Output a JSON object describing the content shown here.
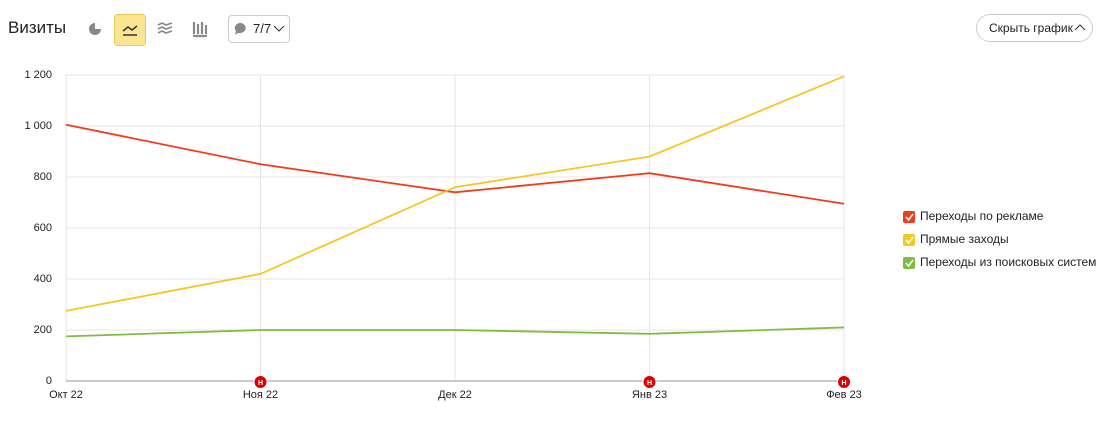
{
  "page_title": "Визиты",
  "filter_button": "7/7",
  "hide_button": "Скрыть график",
  "chart_data": {
    "type": "line",
    "categories": [
      "Окт 22",
      "Ноя 22",
      "Дек 22",
      "Янв 23",
      "Фев 23"
    ],
    "series": [
      {
        "name": "Переходы по рекламе",
        "color": "#f03c1c",
        "values": [
          1005,
          850,
          740,
          815,
          695
        ]
      },
      {
        "name": "Прямые заходы",
        "color": "#f7c624",
        "values": [
          275,
          420,
          760,
          880,
          1195
        ]
      },
      {
        "name": "Переходы из поисковых систем",
        "color": "#7ebd42",
        "values": [
          175,
          200,
          200,
          185,
          210
        ]
      }
    ],
    "ylim": [
      0,
      1200
    ],
    "yticks": [
      0,
      200,
      400,
      600,
      800,
      {
        "value": 1000,
        "label": "1 000"
      },
      {
        "value": 1200,
        "label": "1 200"
      }
    ],
    "grid": true,
    "legend": "right",
    "event_markers": [
      null,
      "Н",
      null,
      "Н",
      "Н"
    ]
  }
}
